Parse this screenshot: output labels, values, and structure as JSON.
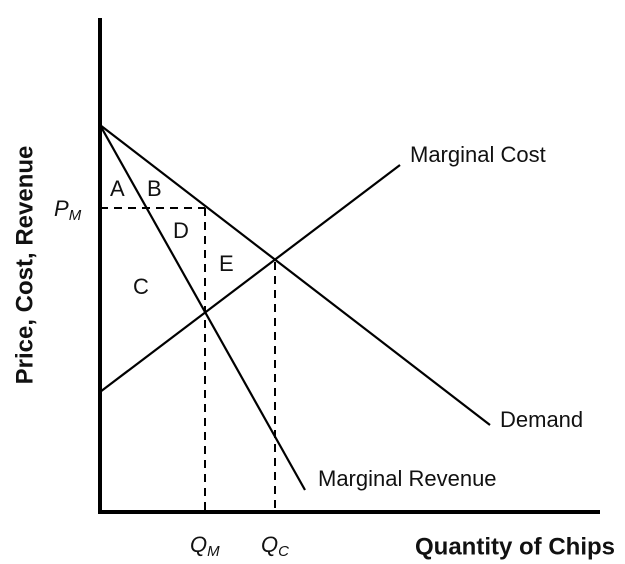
{
  "y_axis_label": "Price, Cost, Revenue",
  "x_axis_label": "Quantity of Chips",
  "curves": {
    "marginal_cost": "Marginal Cost",
    "demand": "Demand",
    "marginal_revenue": "Marginal Revenue"
  },
  "regions": [
    "A",
    "B",
    "C",
    "D",
    "E"
  ],
  "price_label": {
    "main": "P",
    "sub": "M"
  },
  "quantity_labels": [
    {
      "main": "Q",
      "sub": "M"
    },
    {
      "main": "Q",
      "sub": "C"
    }
  ]
}
